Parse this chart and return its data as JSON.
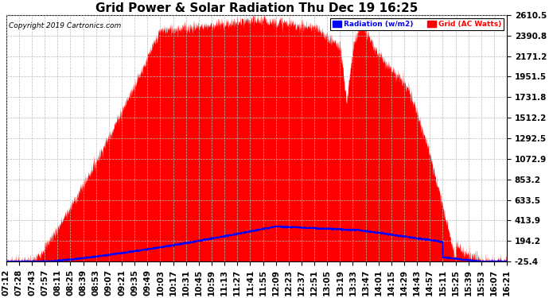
{
  "title": "Grid Power & Solar Radiation Thu Dec 19 16:25",
  "copyright": "Copyright 2019 Cartronics.com",
  "yticks": [
    2610.5,
    2390.8,
    2171.2,
    1951.5,
    1731.8,
    1512.2,
    1292.5,
    1072.9,
    853.2,
    633.5,
    413.9,
    194.2,
    -25.4
  ],
  "ylim": [
    -25.4,
    2610.5
  ],
  "legend_radiation_label": "Radiation (w/m2)",
  "legend_grid_label": "Grid (AC Watts)",
  "legend_radiation_color": "#0000ff",
  "legend_grid_color": "#ff0000",
  "fill_color": "#ff0000",
  "line_color": "#0000ff",
  "background_color": "#ffffff",
  "grid_color": "#bbbbbb",
  "title_fontsize": 11,
  "tick_fontsize": 7.5,
  "x_tick_labels": [
    "07:12",
    "07:28",
    "07:43",
    "07:57",
    "08:11",
    "08:25",
    "08:39",
    "08:53",
    "09:07",
    "09:21",
    "09:35",
    "09:49",
    "10:03",
    "10:17",
    "10:31",
    "10:45",
    "10:59",
    "11:13",
    "11:27",
    "11:41",
    "11:55",
    "12:09",
    "12:23",
    "12:37",
    "12:51",
    "13:05",
    "13:19",
    "13:33",
    "13:47",
    "14:01",
    "14:15",
    "14:29",
    "14:43",
    "14:57",
    "15:11",
    "15:25",
    "15:39",
    "15:53",
    "16:07",
    "16:21"
  ]
}
